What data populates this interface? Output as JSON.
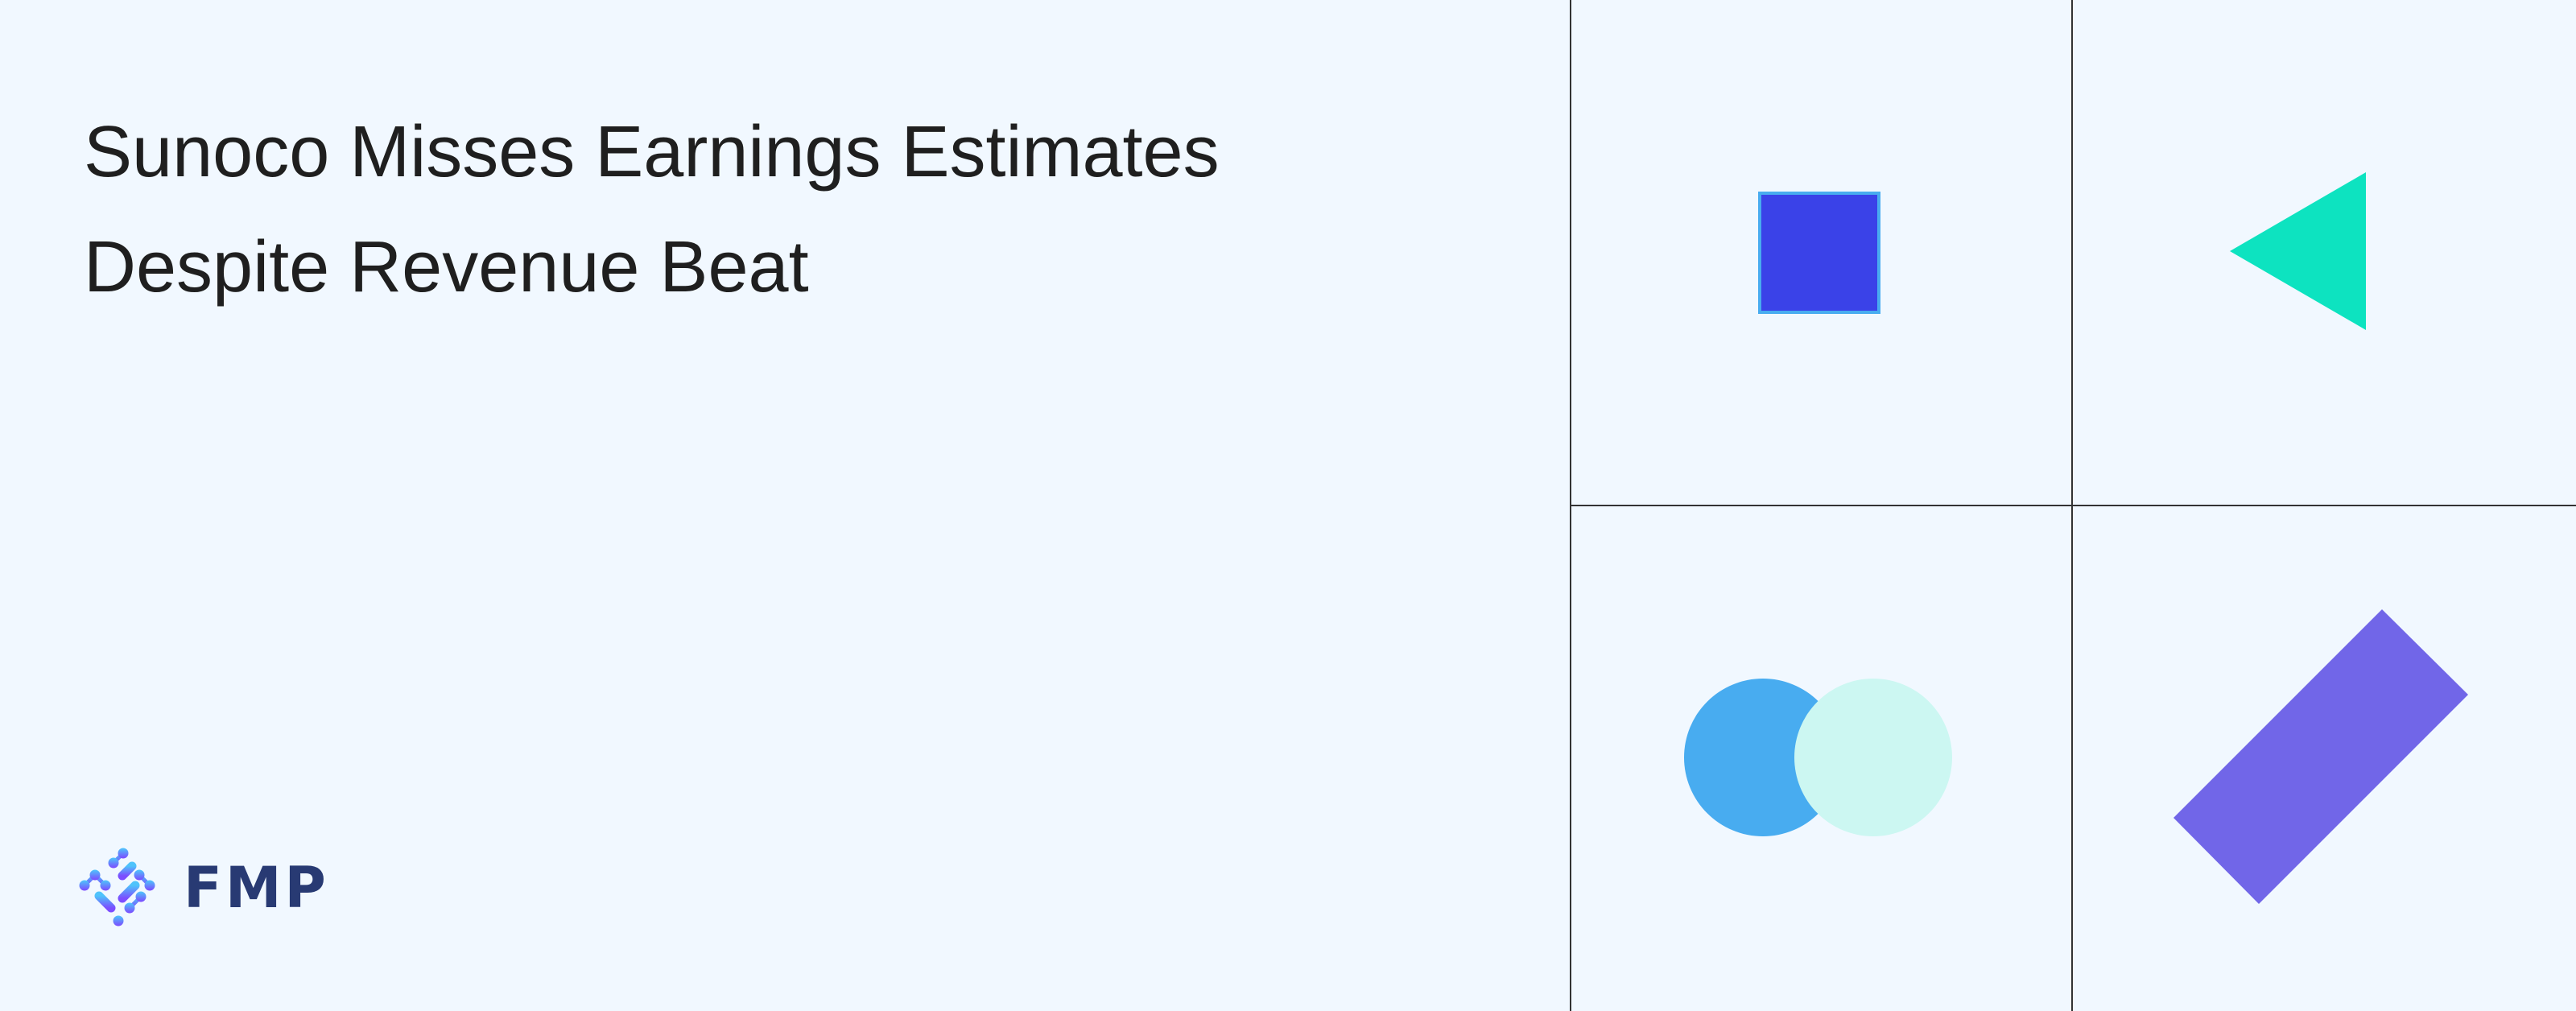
{
  "headline": {
    "line1": "Sunoco Misses Earnings Estimates",
    "line2": "Despite Revenue Beat"
  },
  "logo": {
    "text": "FMP",
    "color": "#283a73"
  },
  "colors": {
    "background": "#f1f8ff",
    "square_fill": "#3a42e8",
    "square_border": "#48acf0",
    "triangle": "#0de3c0",
    "circle_left": "#48acf0",
    "circle_right": "#ccf7f2",
    "bar": "#7166e8",
    "grid_lines": "#333333"
  }
}
